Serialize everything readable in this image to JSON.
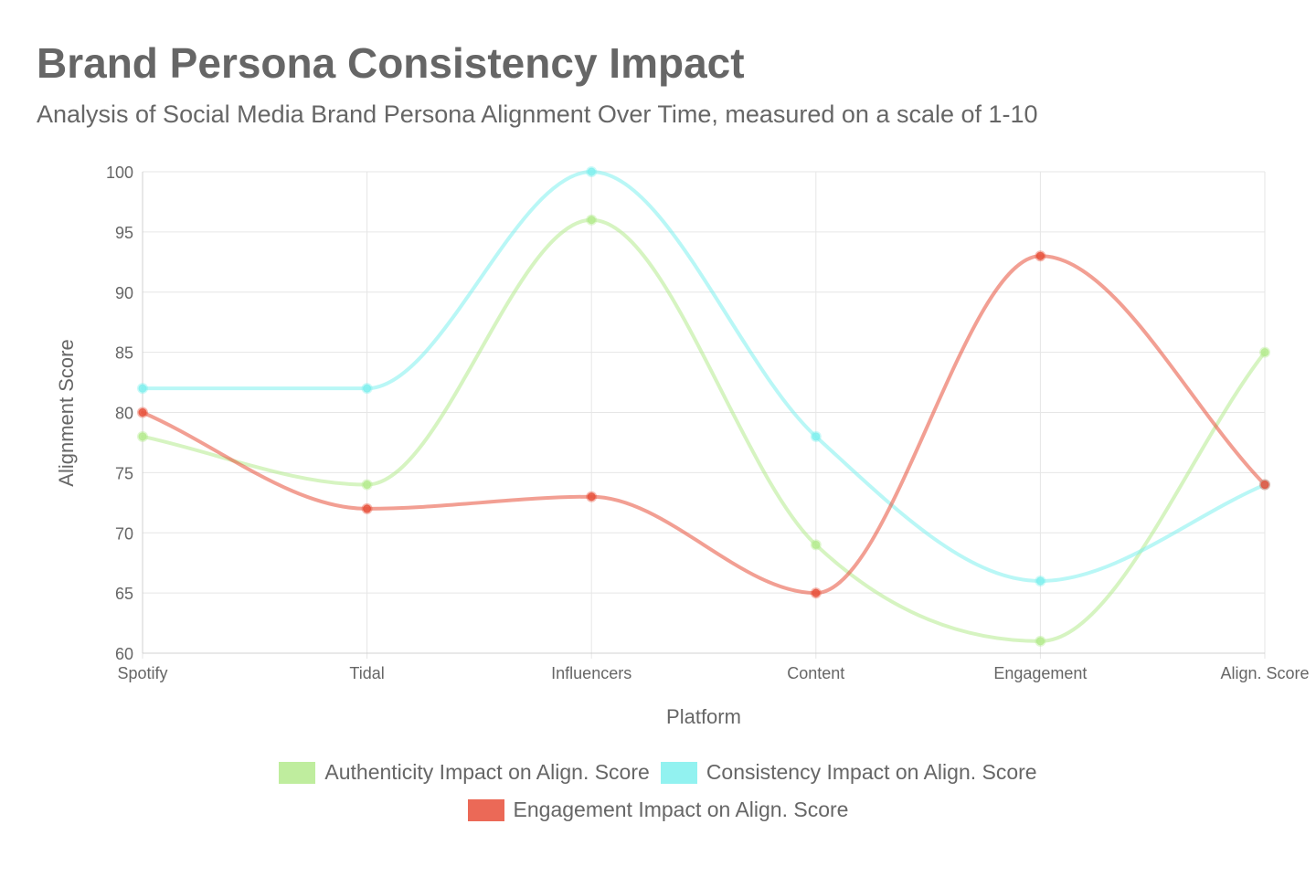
{
  "chart_data": {
    "type": "line",
    "title": "Brand Persona Consistency Impact",
    "subtitle": "Analysis of Social Media Brand Persona Alignment Over Time, measured on a scale of 1-10",
    "xlabel": "Platform",
    "ylabel": "Alignment Score",
    "categories": [
      "Spotify",
      "Tidal",
      "Influencers",
      "Content",
      "Engagement",
      "Align. Score"
    ],
    "ylim": [
      60,
      100
    ],
    "yticks": [
      60,
      65,
      70,
      75,
      80,
      85,
      90,
      95,
      100
    ],
    "grid": true,
    "legend_position": "bottom",
    "series": [
      {
        "name": "Authenticity Impact on Align. Score",
        "values": [
          78,
          74,
          96,
          69,
          61,
          85
        ],
        "color": "#b5eb8e"
      },
      {
        "name": "Consistency Impact on Align. Score",
        "values": [
          82,
          82,
          100,
          78,
          66,
          74
        ],
        "color": "#7ff0ee"
      },
      {
        "name": "Engagement Impact on Align. Score",
        "values": [
          80,
          72,
          73,
          65,
          93,
          74
        ],
        "color": "#e8503a"
      }
    ]
  }
}
